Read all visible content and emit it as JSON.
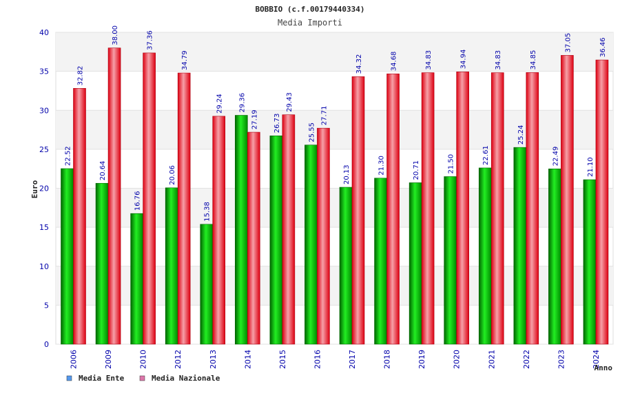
{
  "chart_data": {
    "type": "bar",
    "title": "BOBBIO (c.f.00179440334)",
    "subtitle": "Media Importi",
    "xlabel": "Anno",
    "ylabel": "Euro",
    "ylim": [
      0,
      40
    ],
    "yticks": [
      "0",
      "5",
      "10",
      "15",
      "20",
      "25",
      "30",
      "35",
      "40"
    ],
    "categories": [
      "2006",
      "2009",
      "2010",
      "2012",
      "2013",
      "2014",
      "2015",
      "2016",
      "2017",
      "2018",
      "2019",
      "2020",
      "2021",
      "2022",
      "2023",
      "2024"
    ],
    "series": [
      {
        "name": "Media Ente",
        "color": "#00bb00",
        "values": [
          22.52,
          20.64,
          16.76,
          20.06,
          15.38,
          29.36,
          26.73,
          25.55,
          20.13,
          21.3,
          20.71,
          21.5,
          22.61,
          25.24,
          22.49,
          21.1
        ],
        "labels": [
          "22.52",
          "20.64",
          "16.76",
          "20.06",
          "15.38",
          "29.36",
          "26.73",
          "25.55",
          "20.13",
          "21.30",
          "20.71",
          "21.50",
          "22.61",
          "25.24",
          "22.49",
          "21.10"
        ]
      },
      {
        "name": "Media Nazionale",
        "color": "#ee1122",
        "values": [
          32.82,
          38.0,
          37.36,
          34.79,
          29.24,
          27.19,
          29.43,
          27.71,
          34.32,
          34.68,
          34.83,
          34.94,
          34.83,
          34.85,
          37.05,
          36.46
        ],
        "labels": [
          "32.82",
          "38.00",
          "37.36",
          "34.79",
          "29.24",
          "27.19",
          "29.43",
          "27.71",
          "34.32",
          "34.68",
          "34.83",
          "34.94",
          "34.83",
          "34.85",
          "37.05",
          "36.46"
        ]
      }
    ],
    "legend": [
      {
        "label": "Media Ente",
        "color": "#5599ee"
      },
      {
        "label": "Media Nazionale",
        "color": "#dd77aa"
      }
    ],
    "legend_position": "bottom-left",
    "grid": true
  }
}
